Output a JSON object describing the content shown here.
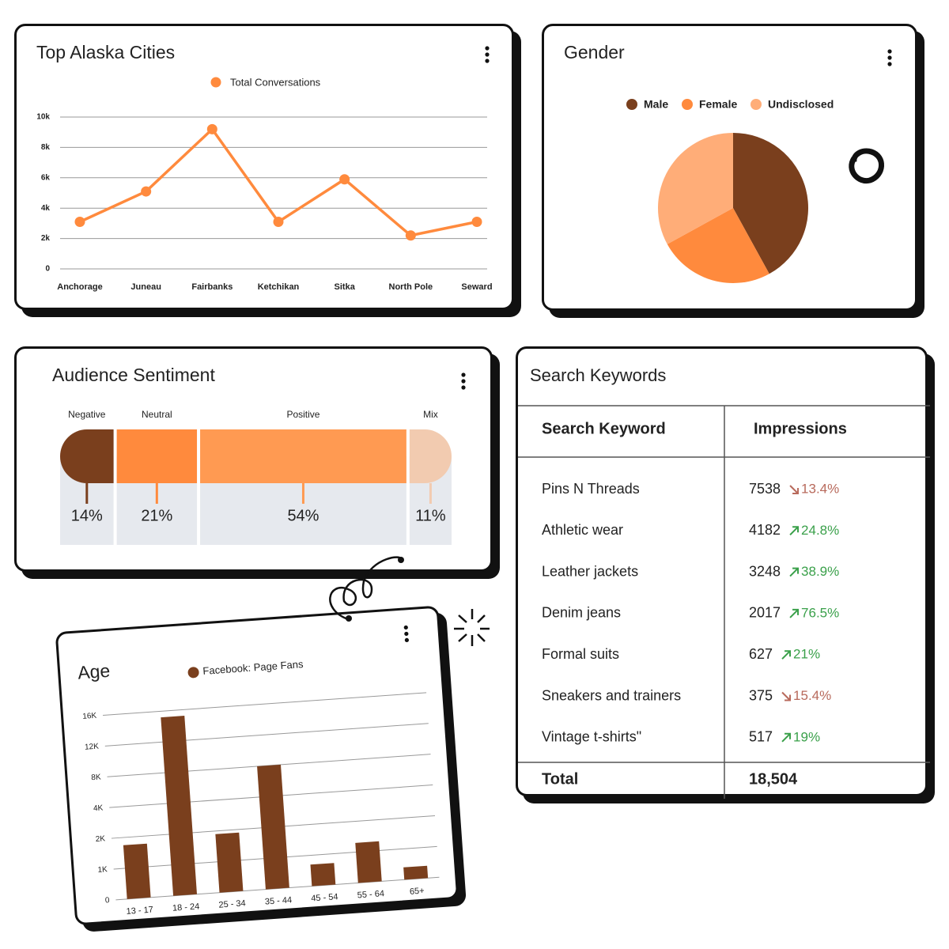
{
  "chart_data": [
    {
      "type": "line",
      "title": "Top Alaska Cities",
      "categories": [
        "Anchorage",
        "Juneau",
        "Fairbanks",
        "Ketchikan",
        "Sitka",
        "North Pole",
        "Seward"
      ],
      "series": [
        {
          "name": "Total Conversations",
          "color": "#ff8a3d",
          "values": [
            3100,
            5100,
            9200,
            3100,
            5900,
            2200,
            3100
          ]
        }
      ],
      "ylim": [
        0,
        10000
      ],
      "yticks": [
        0,
        {
          "value": 2000,
          "label": "2k"
        },
        {
          "value": 4000,
          "label": "4k"
        },
        {
          "value": 6000,
          "label": "6k"
        },
        {
          "value": 8000,
          "label": "8k"
        },
        {
          "value": 10000,
          "label": "10k"
        }
      ],
      "grid": true,
      "legend": "top"
    },
    {
      "type": "pie",
      "title": "Gender",
      "categories": [
        "Male",
        "Female",
        "Undisclosed"
      ],
      "values": [
        42,
        25,
        33
      ],
      "colors": [
        "#7a3f1d",
        "#ff8a3d",
        "#ffad78"
      ],
      "legend": "top"
    },
    {
      "type": "stacked-bar",
      "title": "Audience Sentiment",
      "categories": [
        "Negative",
        "Neutral",
        "Positive",
        "Mix"
      ],
      "values": [
        14,
        21,
        54,
        11
      ],
      "value_labels": [
        "14%",
        "21%",
        "54%",
        "11%"
      ],
      "colors": [
        "#7a3f1d",
        "#ff8a3d",
        "#ff9a52",
        "#f2cbb0"
      ]
    },
    {
      "type": "bar",
      "title": "Age",
      "categories": [
        "13 - 17",
        "18 - 24",
        "25 - 34",
        "35 - 44",
        "45 - 54",
        "55 - 64",
        "65+"
      ],
      "series": [
        {
          "name": "Facebook: Page Fans",
          "color": "#7a3f1d",
          "values": [
            1750,
            15200,
            1900,
            8000,
            700,
            1300,
            400
          ]
        }
      ],
      "ylim": [
        0,
        16000
      ],
      "yticks": [
        0,
        {
          "value": 1000,
          "label": "1K"
        },
        {
          "value": 2000,
          "label": "2K"
        },
        {
          "value": 4000,
          "label": "4K"
        },
        {
          "value": 8000,
          "label": "8K"
        },
        {
          "value": 12000,
          "label": "12K"
        },
        {
          "value": 16000,
          "label": "16K"
        }
      ],
      "grid": true,
      "legend": "top"
    }
  ],
  "table": {
    "title": "Search Keywords",
    "columns": [
      "Search Keyword",
      "Impressions"
    ],
    "rows": [
      {
        "keyword": "Pins N Threads",
        "impressions": 7538,
        "change": "13.4%",
        "trend": "down"
      },
      {
        "keyword": "Athletic wear",
        "impressions": 4182,
        "change": "24.8%",
        "trend": "up"
      },
      {
        "keyword": "Leather jackets",
        "impressions": 3248,
        "change": "38.9%",
        "trend": "up"
      },
      {
        "keyword": "Denim jeans",
        "impressions": 2017,
        "change": "76.5%",
        "trend": "up"
      },
      {
        "keyword": "Formal suits",
        "impressions": 627,
        "change": "21%",
        "trend": "up"
      },
      {
        "keyword": "Sneakers and trainers",
        "impressions": 375,
        "change": "15.4%",
        "trend": "down"
      },
      {
        "keyword": "Vintage t-shirts\"",
        "impressions": 517,
        "change": "19%",
        "trend": "up"
      }
    ],
    "total": {
      "label": "Total",
      "value": "18,504"
    }
  }
}
